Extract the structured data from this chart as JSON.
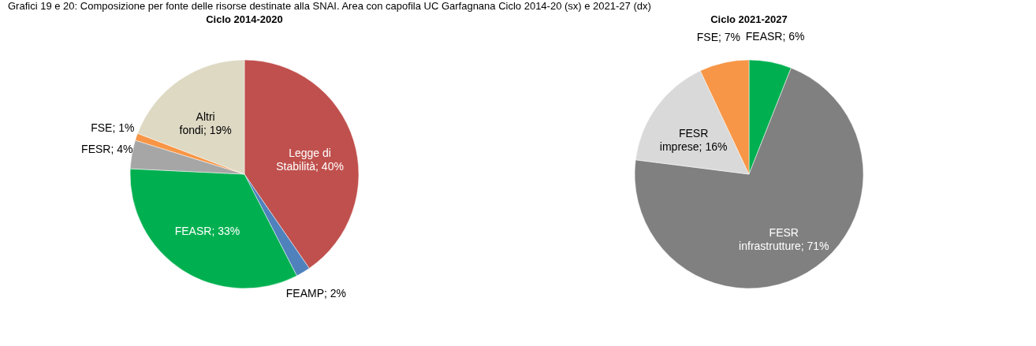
{
  "chart_data": [
    {
      "type": "pie",
      "title": "Ciclo 2014-2020",
      "annotations": [
        "Grafici 19 e 20: Composizione per fonte delle risorse destinate alla SNAI. Area con capofila UC Garfagnana Ciclo 2014-20 (sx) e 2021-27 (dx)"
      ],
      "categories": [
        "Legge di Stabilità",
        "FEAMP",
        "FEASR",
        "FESR",
        "FSE",
        "Altri fondi"
      ],
      "values": [
        40,
        2,
        33,
        4,
        1,
        19
      ],
      "value_labels": [
        "40%",
        "2%",
        "33%",
        "4%",
        "1%",
        "19%"
      ],
      "colors": [
        "#c0504d",
        "#4f81bd",
        "#00b050",
        "#a6a6a6",
        "#f79646",
        "#ddd9c3"
      ]
    },
    {
      "type": "pie",
      "title": "Ciclo 2021-2027",
      "categories": [
        "FEASR",
        "FESR infrastrutture",
        "FESR imprese",
        "FSE"
      ],
      "values": [
        6,
        71,
        16,
        7
      ],
      "value_labels": [
        "6%",
        "71%",
        "16%",
        "7%"
      ],
      "colors": [
        "#00b050",
        "#808080",
        "#d9d9d9",
        "#f79646"
      ]
    }
  ]
}
